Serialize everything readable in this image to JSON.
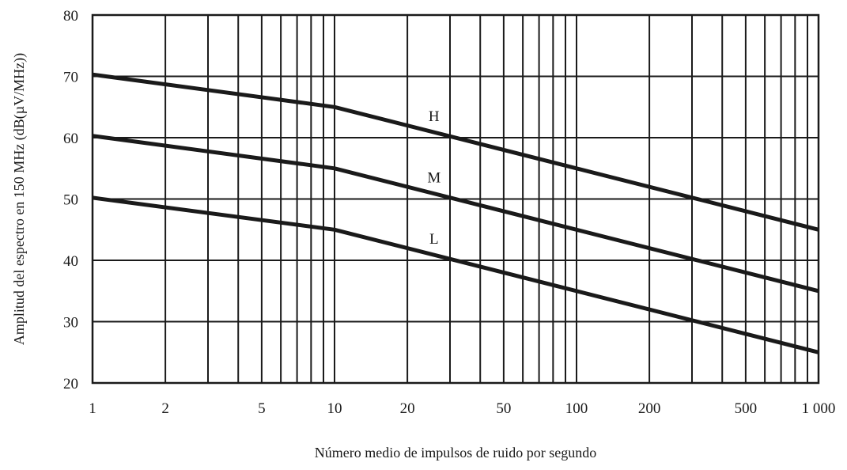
{
  "chart_data": {
    "type": "line",
    "xscale": "log",
    "xlim": [
      1,
      1000
    ],
    "ylim": [
      20,
      80
    ],
    "grid": true,
    "xlabel": "Número medio de impulsos de ruido por segundo",
    "ylabel": "Amplitud del espectro en 150 MHz (dB(µV/MHz))",
    "x_ticks": [
      {
        "value": 1,
        "label": "1"
      },
      {
        "value": 2,
        "label": "2"
      },
      {
        "value": 5,
        "label": "5"
      },
      {
        "value": 10,
        "label": "10"
      },
      {
        "value": 20,
        "label": "20"
      },
      {
        "value": 50,
        "label": "50"
      },
      {
        "value": 100,
        "label": "100"
      },
      {
        "value": 200,
        "label": "200"
      },
      {
        "value": 500,
        "label": "500"
      },
      {
        "value": 1000,
        "label": "1 000"
      }
    ],
    "y_ticks": [
      {
        "value": 20,
        "label": "20"
      },
      {
        "value": 30,
        "label": "30"
      },
      {
        "value": 40,
        "label": "40"
      },
      {
        "value": 50,
        "label": "50"
      },
      {
        "value": 60,
        "label": "60"
      },
      {
        "value": 70,
        "label": "70"
      },
      {
        "value": 80,
        "label": "80"
      }
    ],
    "series": [
      {
        "name": "H",
        "x": [
          1,
          10,
          1000
        ],
        "y": [
          70.3,
          65,
          45
        ],
        "label_at": [
          25,
          63.5
        ]
      },
      {
        "name": "M",
        "x": [
          1,
          10,
          1000
        ],
        "y": [
          60.3,
          55,
          35
        ],
        "label_at": [
          25,
          53.5
        ]
      },
      {
        "name": "L",
        "x": [
          1,
          10,
          1000
        ],
        "y": [
          50.2,
          45,
          25
        ],
        "label_at": [
          25,
          43.5
        ]
      }
    ],
    "line_color": "#1a1a1a",
    "grid_color": "#1a1a1a"
  }
}
